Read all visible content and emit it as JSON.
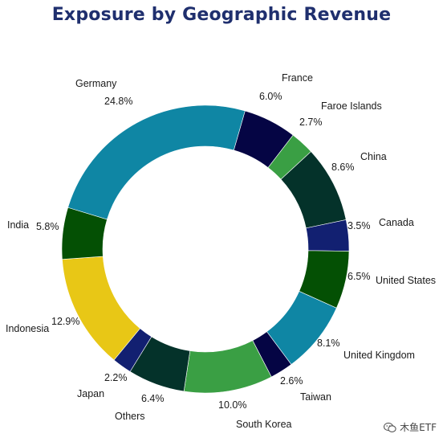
{
  "chart_data": {
    "type": "pie",
    "title": "Exposure by Geographic Revenue",
    "donut": true,
    "unit": "%",
    "slices": [
      {
        "label": "France",
        "value": 6.0,
        "value_text": "6.0%",
        "color": "#050544"
      },
      {
        "label": "Faroe Islands",
        "value": 2.7,
        "value_text": "2.7%",
        "color": "#3a9f44"
      },
      {
        "label": "China",
        "value": 8.6,
        "value_text": "8.6%",
        "color": "#04322a"
      },
      {
        "label": "Canada",
        "value": 3.5,
        "value_text": "3.5%",
        "color": "#122071"
      },
      {
        "label": "United States",
        "value": 6.5,
        "value_text": "6.5%",
        "color": "#045004"
      },
      {
        "label": "United Kingdom",
        "value": 8.1,
        "value_text": "8.1%",
        "color": "#0f86a4"
      },
      {
        "label": "Taiwan",
        "value": 2.6,
        "value_text": "2.6%",
        "color": "#050544"
      },
      {
        "label": "South Korea",
        "value": 10.0,
        "value_text": "10.0%",
        "color": "#3a9f44"
      },
      {
        "label": "Others",
        "value": 6.4,
        "value_text": "6.4%",
        "color": "#04322a"
      },
      {
        "label": "Japan",
        "value": 2.2,
        "value_text": "2.2%",
        "color": "#122071"
      },
      {
        "label": "Indonesia",
        "value": 12.9,
        "value_text": "12.9%",
        "color": "#e8c716"
      },
      {
        "label": "India",
        "value": 5.8,
        "value_text": "5.8%",
        "color": "#045004"
      },
      {
        "label": "Germany",
        "value": 24.8,
        "value_text": "24.8%",
        "color": "#0f86a4"
      }
    ]
  },
  "watermark": {
    "text": "木鱼ETF",
    "icon": "wechat-icon"
  }
}
